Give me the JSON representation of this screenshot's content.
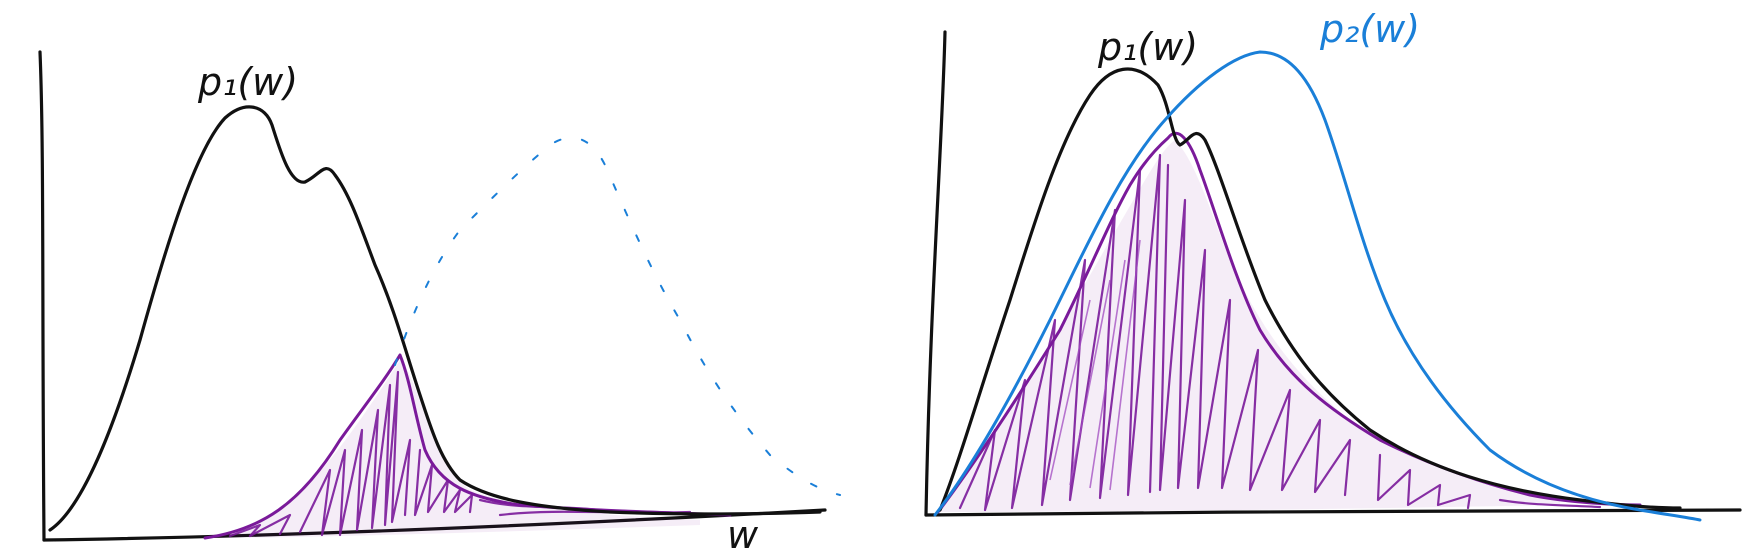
{
  "panel_left": {
    "curve_label": "p₁(w)",
    "x_axis_label": "w"
  },
  "panel_right": {
    "curve1_label": "p₁(w)",
    "curve2_label": "p₂(w)"
  },
  "colors": {
    "ink": "#111111",
    "blue": "#1a7fd8",
    "purple": "#7a1a9a",
    "background": "#ffffff"
  }
}
